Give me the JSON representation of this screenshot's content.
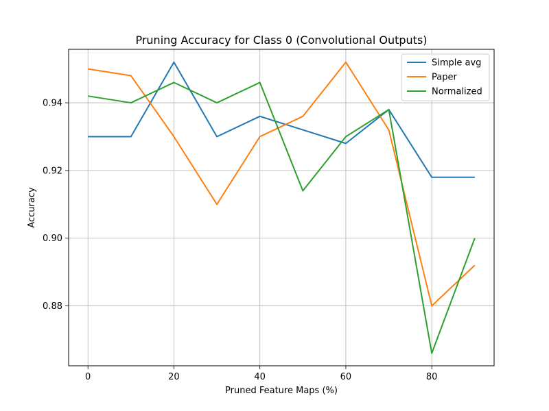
{
  "chart_data": {
    "type": "line",
    "title": "Pruning Accuracy for Class 0 (Convolutional Outputs)",
    "xlabel": "Pruned Feature Maps (%)",
    "ylabel": "Accuracy",
    "x": [
      0,
      10,
      20,
      30,
      40,
      50,
      60,
      70,
      80,
      90
    ],
    "xlim": [
      -4.5,
      94.5
    ],
    "ylim": [
      0.8623,
      0.9558
    ],
    "xticks": [
      0,
      20,
      40,
      60,
      80
    ],
    "xtick_labels": [
      "0",
      "20",
      "40",
      "60",
      "80"
    ],
    "yticks": [
      0.88,
      0.9,
      0.92,
      0.94
    ],
    "ytick_labels": [
      "0.88",
      "0.90",
      "0.92",
      "0.94"
    ],
    "grid": true,
    "legend_position": "top-right",
    "series": [
      {
        "name": "Simple avg",
        "color": "#1f77b4",
        "values": [
          0.93,
          0.93,
          0.952,
          0.93,
          0.936,
          0.932,
          0.928,
          0.938,
          0.918,
          0.918
        ]
      },
      {
        "name": "Paper",
        "color": "#ff7f0e",
        "values": [
          0.95,
          0.948,
          0.93,
          0.91,
          0.93,
          0.936,
          0.952,
          0.932,
          0.88,
          0.892
        ]
      },
      {
        "name": "Normalized",
        "color": "#2ca02c",
        "values": [
          0.942,
          0.94,
          0.946,
          0.94,
          0.946,
          0.914,
          0.93,
          0.938,
          0.866,
          0.9
        ]
      }
    ]
  }
}
